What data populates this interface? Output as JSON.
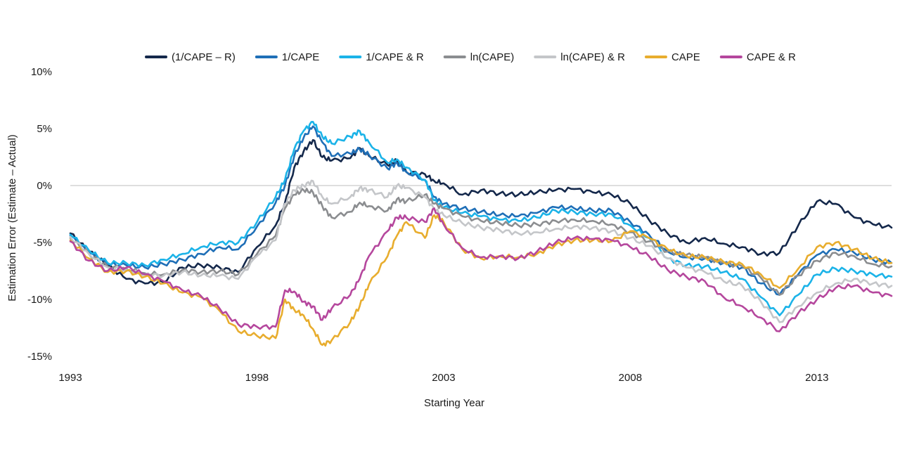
{
  "chart_data": {
    "type": "line",
    "title": "",
    "xlabel": "Starting Year",
    "ylabel": "Estimation Error (Estimate – Actual)",
    "xlim": [
      1993,
      2015
    ],
    "ylim": [
      -15,
      10
    ],
    "x_ticks": [
      1993,
      1998,
      2003,
      2008,
      2013
    ],
    "x_tick_labels": [
      "1993",
      "1998",
      "2003",
      "2008",
      "2013"
    ],
    "y_ticks": [
      10,
      5,
      0,
      -5,
      -10,
      -15
    ],
    "y_tick_labels": [
      "10%",
      "5%",
      "0%",
      "-5%",
      "-10%",
      "-15%"
    ],
    "grid": false,
    "zero_line": true,
    "legend_position": "top",
    "x": [
      1993.0,
      1993.5,
      1994.0,
      1994.5,
      1995.0,
      1995.5,
      1996.0,
      1996.5,
      1997.0,
      1997.5,
      1998.0,
      1998.5,
      1998.75,
      1999.0,
      1999.25,
      1999.5,
      1999.75,
      2000.0,
      2000.5,
      2000.75,
      2001.0,
      2001.5,
      2001.75,
      2002.0,
      2002.5,
      2002.75,
      2003.0,
      2003.5,
      2004.0,
      2004.5,
      2005.0,
      2005.5,
      2006.0,
      2006.5,
      2007.0,
      2007.5,
      2008.0,
      2008.5,
      2009.0,
      2009.5,
      2010.0,
      2010.5,
      2011.0,
      2011.5,
      2012.0,
      2012.5,
      2013.0,
      2013.5,
      2014.0,
      2014.5,
      2015.0
    ],
    "series": [
      {
        "name": "(1/CAPE – R)",
        "color": "#14284b",
        "values": [
          -4.2,
          -5.8,
          -7.0,
          -8.2,
          -8.6,
          -8.5,
          -7.2,
          -7.0,
          -7.2,
          -7.6,
          -5.4,
          -3.5,
          -1.5,
          1.6,
          3.0,
          4.0,
          2.5,
          2.2,
          2.4,
          3.3,
          2.6,
          1.8,
          2.2,
          1.2,
          1.0,
          0.4,
          0.2,
          -0.8,
          -0.4,
          -0.7,
          -0.8,
          -0.6,
          -0.4,
          -0.3,
          -0.6,
          -0.8,
          -1.6,
          -3.0,
          -4.2,
          -5.0,
          -4.6,
          -5.1,
          -5.4,
          -6.0,
          -5.9,
          -3.5,
          -1.4,
          -1.6,
          -2.8,
          -3.4,
          -3.7
        ]
      },
      {
        "name": "1/CAPE",
        "color": "#1f6fb7",
        "values": [
          -4.4,
          -5.9,
          -6.9,
          -7.0,
          -7.2,
          -6.9,
          -6.5,
          -6.0,
          -5.4,
          -5.6,
          -3.6,
          -1.5,
          0.0,
          2.6,
          4.2,
          5.2,
          3.8,
          2.6,
          2.8,
          3.2,
          2.7,
          1.5,
          2.0,
          1.2,
          0.5,
          -1.0,
          -1.6,
          -2.0,
          -2.3,
          -2.6,
          -2.7,
          -2.4,
          -1.9,
          -2.0,
          -2.2,
          -2.2,
          -3.2,
          -4.3,
          -5.8,
          -6.3,
          -6.4,
          -6.8,
          -7.2,
          -8.6,
          -9.6,
          -7.8,
          -6.1,
          -5.6,
          -5.9,
          -6.5,
          -6.8
        ]
      },
      {
        "name": "1/CAPE & R",
        "color": "#1bb3e8",
        "values": [
          -4.3,
          -5.7,
          -6.8,
          -6.8,
          -7.0,
          -6.5,
          -6.0,
          -5.4,
          -5.0,
          -5.0,
          -3.2,
          -1.0,
          0.5,
          3.2,
          4.8,
          5.6,
          4.3,
          3.7,
          4.3,
          4.8,
          3.8,
          2.0,
          2.3,
          1.6,
          0.5,
          -1.3,
          -1.9,
          -2.4,
          -2.7,
          -3.0,
          -3.1,
          -2.8,
          -2.2,
          -2.3,
          -2.5,
          -2.5,
          -3.5,
          -4.6,
          -6.4,
          -7.0,
          -7.1,
          -7.6,
          -8.2,
          -9.8,
          -11.4,
          -9.6,
          -7.8,
          -7.3,
          -7.5,
          -7.8,
          -8.0
        ]
      },
      {
        "name": "ln(CAPE)",
        "color": "#8b8d90",
        "values": [
          -4.6,
          -6.0,
          -7.1,
          -7.3,
          -7.7,
          -7.8,
          -7.4,
          -7.6,
          -7.5,
          -7.8,
          -6.0,
          -4.4,
          -2.0,
          -0.8,
          -0.4,
          -0.6,
          -1.8,
          -2.8,
          -2.3,
          -1.5,
          -1.8,
          -2.2,
          -1.2,
          -1.4,
          -0.8,
          -1.6,
          -2.0,
          -2.7,
          -3.1,
          -3.3,
          -3.5,
          -3.4,
          -3.1,
          -3.0,
          -3.1,
          -3.4,
          -4.1,
          -4.9,
          -5.8,
          -6.1,
          -6.3,
          -6.8,
          -7.1,
          -8.1,
          -9.6,
          -7.9,
          -6.6,
          -5.9,
          -6.2,
          -6.9,
          -7.1
        ]
      },
      {
        "name": "ln(CAPE) & R",
        "color": "#c4c6c9",
        "values": [
          -4.5,
          -6.0,
          -7.2,
          -7.4,
          -7.8,
          -7.9,
          -7.6,
          -7.9,
          -7.9,
          -8.2,
          -6.2,
          -4.8,
          -1.6,
          -0.4,
          0.0,
          0.4,
          -1.0,
          -1.6,
          -1.0,
          -0.2,
          -0.4,
          -1.0,
          0.0,
          -0.2,
          -1.0,
          -2.1,
          -2.6,
          -3.3,
          -3.7,
          -3.9,
          -4.2,
          -4.1,
          -3.8,
          -3.6,
          -3.7,
          -4.0,
          -4.6,
          -5.3,
          -6.4,
          -7.2,
          -7.6,
          -8.4,
          -8.8,
          -10.2,
          -12.0,
          -10.6,
          -9.4,
          -8.6,
          -8.2,
          -8.6,
          -8.8
        ]
      },
      {
        "name": "CAPE",
        "color": "#e8ad2e",
        "values": [
          -4.8,
          -6.4,
          -7.6,
          -7.5,
          -8.0,
          -8.6,
          -9.4,
          -9.8,
          -11.0,
          -12.8,
          -13.2,
          -13.4,
          -10.0,
          -10.9,
          -11.4,
          -12.6,
          -14.0,
          -13.6,
          -12.0,
          -10.6,
          -8.7,
          -6.2,
          -4.4,
          -3.2,
          -4.6,
          -2.6,
          -3.2,
          -5.6,
          -6.4,
          -6.2,
          -6.3,
          -6.0,
          -5.2,
          -4.8,
          -4.8,
          -4.9,
          -4.0,
          -4.6,
          -5.6,
          -6.2,
          -6.3,
          -6.7,
          -6.9,
          -7.8,
          -9.0,
          -7.3,
          -5.4,
          -5.0,
          -5.6,
          -6.4,
          -6.8
        ]
      },
      {
        "name": "CAPE & R",
        "color": "#b5479d",
        "values": [
          -4.9,
          -6.6,
          -7.5,
          -7.2,
          -7.8,
          -8.4,
          -9.2,
          -9.7,
          -10.8,
          -12.2,
          -12.4,
          -12.4,
          -9.2,
          -9.3,
          -10.2,
          -10.6,
          -11.8,
          -10.8,
          -9.6,
          -8.2,
          -6.2,
          -4.0,
          -2.8,
          -2.8,
          -3.2,
          -2.0,
          -3.4,
          -5.5,
          -6.3,
          -6.2,
          -6.4,
          -5.8,
          -5.0,
          -4.6,
          -4.7,
          -4.8,
          -5.4,
          -6.2,
          -7.4,
          -8.0,
          -8.4,
          -9.8,
          -10.6,
          -11.6,
          -12.8,
          -11.2,
          -10.0,
          -9.0,
          -8.8,
          -9.4,
          -9.7
        ]
      }
    ]
  }
}
